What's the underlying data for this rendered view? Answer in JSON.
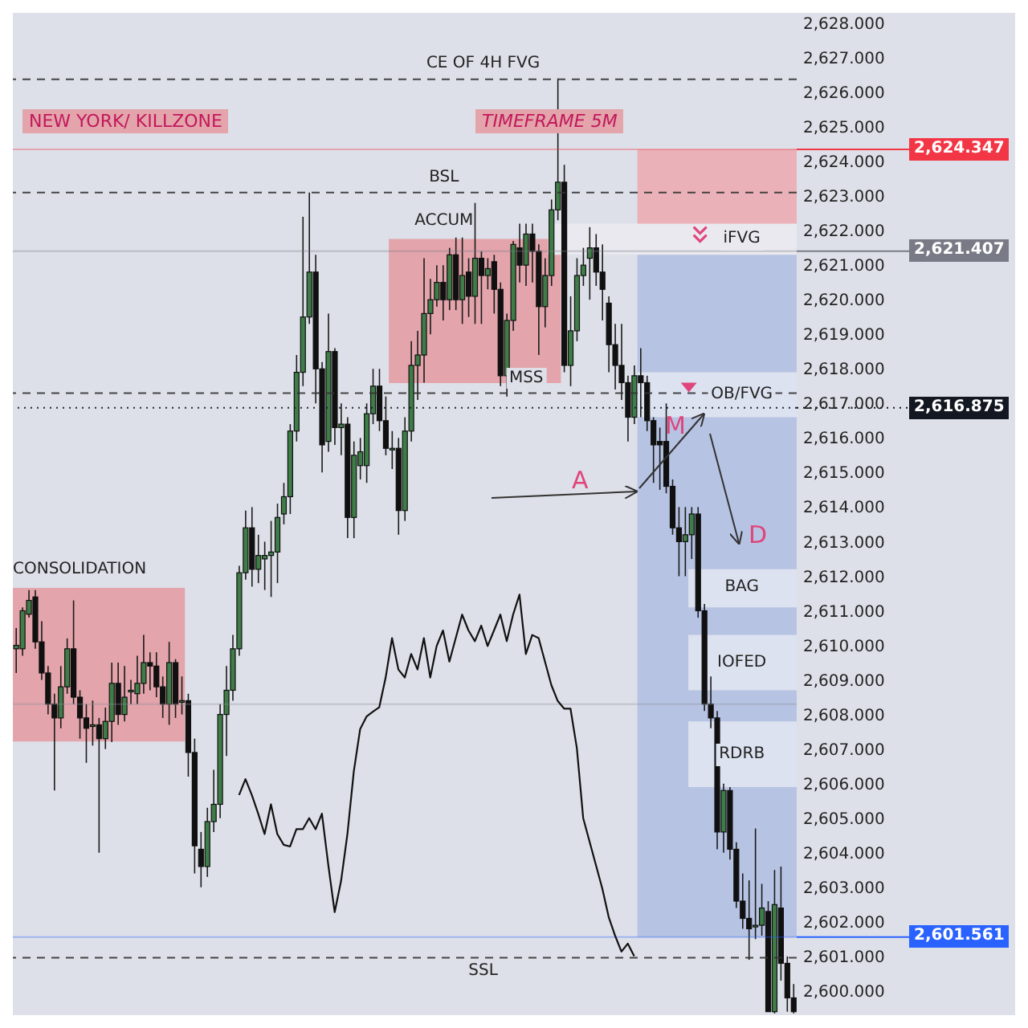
{
  "chart_data": {
    "type": "candlestick",
    "categories": [
      null,
      null,
      null,
      null,
      null,
      null,
      null,
      null,
      null,
      null,
      null,
      null,
      null,
      null,
      null,
      null,
      null,
      null,
      null,
      null,
      null,
      null,
      null,
      null,
      null,
      null,
      null,
      null,
      null,
      null,
      null,
      null,
      null,
      null,
      null,
      null,
      null,
      null,
      null,
      null,
      null,
      null,
      null,
      null,
      null,
      null,
      null,
      null,
      null,
      null,
      null,
      null,
      null,
      null,
      null,
      null,
      null,
      null,
      null,
      null,
      null,
      null,
      null,
      null,
      null,
      null,
      null,
      null,
      null,
      null,
      null,
      null,
      null,
      null,
      null,
      null,
      null,
      null,
      null,
      null,
      null,
      null,
      null,
      null,
      null,
      null,
      null,
      null,
      null,
      null,
      null,
      null,
      null,
      null,
      null,
      null,
      null,
      null,
      null,
      null,
      null,
      null,
      null,
      null,
      null,
      null,
      null,
      null,
      null,
      null,
      null,
      null,
      null,
      null,
      null,
      null,
      null,
      null,
      null,
      null,
      null,
      null,
      null
    ],
    "ohlc": [
      [
        2609.9,
        2610.5,
        2609.2,
        2610.0
      ],
      [
        2609.9,
        2611.1,
        2609.7,
        2611.0
      ],
      [
        2610.9,
        2611.6,
        2610.8,
        2611.3
      ],
      [
        2611.4,
        2611.6,
        2609.9,
        2610.1
      ],
      [
        2610.1,
        2610.7,
        2609.0,
        2609.2
      ],
      [
        2609.2,
        2609.4,
        2608.0,
        2608.3
      ],
      [
        2608.3,
        2608.6,
        2605.8,
        2607.9
      ],
      [
        2607.9,
        2609.4,
        2607.6,
        2608.8
      ],
      [
        2608.8,
        2610.2,
        2608.6,
        2609.9
      ],
      [
        2609.9,
        2611.3,
        2608.3,
        2608.5
      ],
      [
        2608.5,
        2608.7,
        2607.3,
        2607.9
      ],
      [
        2607.9,
        2608.3,
        2606.6,
        2607.6
      ],
      [
        2607.7,
        2608.4,
        2607.1,
        2607.7
      ],
      [
        2607.7,
        2607.9,
        2604.0,
        2607.3
      ],
      [
        2607.3,
        2608.2,
        2607.0,
        2607.8
      ],
      [
        2607.8,
        2609.5,
        2607.2,
        2608.9
      ],
      [
        2608.9,
        2609.5,
        2607.7,
        2608.0
      ],
      [
        2608.0,
        2609.4,
        2607.8,
        2608.5
      ],
      [
        2608.7,
        2609.0,
        2608.3,
        2608.7
      ],
      [
        2608.6,
        2609.7,
        2608.3,
        2608.9
      ],
      [
        2608.9,
        2610.3,
        2608.6,
        2609.5
      ],
      [
        2609.5,
        2609.8,
        2608.7,
        2609.4
      ],
      [
        2609.4,
        2609.8,
        2608.5,
        2608.8
      ],
      [
        2608.8,
        2609.1,
        2607.9,
        2608.3
      ],
      [
        2608.3,
        2610.1,
        2607.7,
        2609.5
      ],
      [
        2609.5,
        2609.6,
        2607.9,
        2608.3
      ],
      [
        2608.4,
        2609.1,
        2608.0,
        2608.4
      ],
      [
        2608.4,
        2608.6,
        2606.2,
        2606.9
      ],
      [
        2606.9,
        2607.3,
        2603.4,
        2604.2
      ],
      [
        2604.1,
        2604.6,
        2603.0,
        2603.6
      ],
      [
        2603.6,
        2605.3,
        2603.3,
        2604.9
      ],
      [
        2604.9,
        2606.4,
        2604.6,
        2605.4
      ],
      [
        2605.4,
        2608.3,
        2605.0,
        2608.0
      ],
      [
        2608.0,
        2609.4,
        2606.8,
        2608.7
      ],
      [
        2608.7,
        2610.3,
        2608.4,
        2609.9
      ],
      [
        2609.9,
        2612.3,
        2609.7,
        2612.1
      ],
      [
        2612.1,
        2613.9,
        2611.9,
        2613.4
      ],
      [
        2613.4,
        2614.0,
        2611.7,
        2612.2
      ],
      [
        2612.2,
        2613.2,
        2611.8,
        2612.6
      ],
      [
        2612.5,
        2613.0,
        2611.6,
        2612.6
      ],
      [
        2612.6,
        2613.6,
        2611.4,
        2612.7
      ],
      [
        2612.7,
        2614.1,
        2611.8,
        2613.7
      ],
      [
        2613.8,
        2614.7,
        2613.5,
        2614.3
      ],
      [
        2614.3,
        2616.4,
        2613.8,
        2616.2
      ],
      [
        2616.2,
        2618.4,
        2615.9,
        2617.9
      ],
      [
        2617.9,
        2622.4,
        2617.5,
        2619.5
      ],
      [
        2619.5,
        2623.1,
        2619.3,
        2620.8
      ],
      [
        2620.8,
        2621.3,
        2617.0,
        2618.0
      ],
      [
        2618.0,
        2618.2,
        2615.0,
        2615.8
      ],
      [
        2615.9,
        2619.6,
        2615.6,
        2618.5
      ],
      [
        2618.5,
        2618.6,
        2615.8,
        2616.3
      ],
      [
        2616.3,
        2617.0,
        2615.5,
        2616.4
      ],
      [
        2616.4,
        2616.6,
        2613.1,
        2613.7
      ],
      [
        2613.7,
        2615.9,
        2613.1,
        2615.5
      ],
      [
        2615.2,
        2616.0,
        2614.8,
        2615.6
      ],
      [
        2615.2,
        2617.0,
        2614.7,
        2616.7
      ],
      [
        2616.7,
        2618.0,
        2616.4,
        2617.5
      ],
      [
        2617.5,
        2618.0,
        2616.2,
        2616.5
      ],
      [
        2616.5,
        2617.2,
        2615.5,
        2615.7
      ],
      [
        2615.7,
        2616.2,
        2615.1,
        2615.7
      ],
      [
        2615.7,
        2616.0,
        2613.2,
        2613.9
      ],
      [
        2613.9,
        2616.6,
        2613.6,
        2616.2
      ],
      [
        2616.2,
        2618.8,
        2615.9,
        2618.1
      ],
      [
        2618.1,
        2619.1,
        2617.1,
        2618.4
      ],
      [
        2618.4,
        2621.2,
        2617.6,
        2619.6
      ],
      [
        2619.6,
        2620.6,
        2619.0,
        2620.0
      ],
      [
        2620.0,
        2621.0,
        2619.8,
        2620.5
      ],
      [
        2620.5,
        2621.0,
        2619.4,
        2620.0
      ],
      [
        2620.0,
        2621.5,
        2619.7,
        2621.3
      ],
      [
        2621.3,
        2621.8,
        2619.7,
        2620.0
      ],
      [
        2620.0,
        2621.8,
        2619.3,
        2620.7
      ],
      [
        2620.8,
        2621.2,
        2619.5,
        2620.1
      ],
      [
        2620.1,
        2622.8,
        2619.3,
        2621.2
      ],
      [
        2621.2,
        2621.4,
        2619.3,
        2620.7
      ],
      [
        2620.7,
        2621.2,
        2620.3,
        2620.9
      ],
      [
        2621.1,
        2621.3,
        2619.6,
        2620.3
      ],
      [
        2620.3,
        2620.5,
        2617.5,
        2617.8
      ],
      [
        2617.8,
        2619.6,
        2617.2,
        2619.4
      ],
      [
        2619.4,
        2621.7,
        2619.1,
        2621.6
      ],
      [
        2621.5,
        2622.2,
        2620.5,
        2621.0
      ],
      [
        2621.0,
        2622.2,
        2620.4,
        2621.9
      ],
      [
        2621.9,
        2622.2,
        2620.5,
        2621.4
      ],
      [
        2621.4,
        2621.6,
        2618.4,
        2619.8
      ],
      [
        2619.8,
        2621.2,
        2619.2,
        2620.7
      ],
      [
        2620.7,
        2622.9,
        2620.4,
        2622.6
      ],
      [
        2622.6,
        2626.4,
        2622.3,
        2623.4
      ],
      [
        2623.4,
        2623.9,
        2617.9,
        2618.1
      ],
      [
        2618.1,
        2620.1,
        2617.5,
        2619.1
      ],
      [
        2619.1,
        2621.2,
        2618.8,
        2620.7
      ],
      [
        2620.7,
        2621.5,
        2620.4,
        2621.0
      ],
      [
        2621.2,
        2622.1,
        2620.0,
        2621.5
      ],
      [
        2621.5,
        2621.9,
        2620.4,
        2620.8
      ],
      [
        2620.8,
        2621.6,
        2619.4,
        2620.3
      ],
      [
        2619.9,
        2620.1,
        2617.9,
        2618.7
      ],
      [
        2618.7,
        2619.3,
        2617.4,
        2618.1
      ],
      [
        2618.1,
        2619.3,
        2617.1,
        2617.6
      ],
      [
        2617.6,
        2617.8,
        2615.9,
        2616.6
      ],
      [
        2616.6,
        2618.1,
        2616.4,
        2617.8
      ],
      [
        2617.8,
        2618.6,
        2616.6,
        2617.6
      ],
      [
        2617.6,
        2617.8,
        2616.2,
        2616.5
      ],
      [
        2616.5,
        2616.6,
        2614.7,
        2615.8
      ],
      [
        2615.9,
        2616.3,
        2614.5,
        2615.8
      ],
      [
        2615.9,
        2617.0,
        2614.4,
        2614.6
      ],
      [
        2614.6,
        2614.8,
        2613.2,
        2613.4
      ],
      [
        2613.4,
        2614.0,
        2612.0,
        2613.0
      ],
      [
        2613.0,
        2614.0,
        2612.0,
        2613.2
      ],
      [
        2613.2,
        2614.0,
        2612.5,
        2613.8
      ],
      [
        2613.8,
        2614.0,
        2610.8,
        2611.0
      ],
      [
        2611.0,
        2611.2,
        2608.1,
        2608.3
      ],
      [
        2608.3,
        2609.1,
        2607.6,
        2607.9
      ],
      [
        2607.9,
        2608.1,
        2604.1,
        2604.6
      ],
      [
        2604.6,
        2606.0,
        2604.0,
        2605.8
      ],
      [
        2605.8,
        2605.9,
        2603.8,
        2604.1
      ],
      [
        2604.1,
        2604.3,
        2602.4,
        2602.6
      ],
      [
        2602.6,
        2603.4,
        2601.8,
        2602.1
      ],
      [
        2602.1,
        2603.2,
        2600.9,
        2601.8
      ],
      [
        2601.9,
        2604.7,
        2601.5,
        2601.9
      ],
      [
        2601.9,
        2603.1,
        2601.6,
        2602.4
      ],
      [
        2602.3,
        2602.6,
        2599.4,
        2599.4
      ],
      [
        2599.4,
        2603.5,
        2599.35,
        2602.5
      ],
      [
        2602.4,
        2603.6,
        2600.3,
        2600.8
      ],
      [
        2600.8,
        2601.0,
        2599.4,
        2599.8
      ],
      [
        2599.8,
        2600.2,
        2599.35,
        2599.4
      ]
    ],
    "series": [
      {
        "type": "line",
        "color": "#111111",
        "values": [
          null,
          null,
          null,
          null,
          null,
          null,
          null,
          null,
          null,
          null,
          null,
          null,
          null,
          null,
          null,
          null,
          null,
          null,
          null,
          null,
          null,
          null,
          null,
          null,
          null,
          null,
          null,
          null,
          null,
          null,
          null,
          null,
          null,
          null,
          null,
          2605.67,
          2606.13,
          2605.67,
          2605.13,
          2604.54,
          2605.4,
          2604.54,
          2604.23,
          2604.18,
          2604.68,
          2604.68,
          2605.0,
          2604.68,
          2605.13,
          2603.64,
          2602.28,
          2603.18,
          2604.54,
          2606.35,
          2607.58,
          2607.94,
          2608.08,
          2608.21,
          2609.07,
          2610.21,
          2609.3,
          2609.07,
          2609.75,
          2609.3,
          2610.21,
          2609.07,
          2609.98,
          2610.43,
          2609.53,
          2610.21,
          2610.89,
          2610.43,
          2610.12,
          2610.57,
          2609.98,
          2610.43,
          2610.89,
          2610.12,
          2610.89,
          2611.47,
          2609.75,
          2610.3,
          2610.21,
          2609.53,
          2608.85,
          2608.39,
          2608.17,
          2608.17,
          2607.03,
          2605.0,
          2604.32,
          2603.64,
          2602.96,
          2602.14,
          2601.6,
          2601.14,
          2601.37,
          2601.01,
          null,
          null,
          null,
          null,
          null,
          null,
          null,
          null,
          null,
          null,
          null,
          null,
          null,
          null,
          null,
          null,
          null,
          null,
          null,
          null,
          null,
          null,
          null,
          null,
          null
        ]
      }
    ],
    "ylim": [
      2599.3,
      2628.3
    ],
    "yticks": [
      {
        "value": 2600,
        "label": "2,600.000"
      },
      {
        "value": 2601,
        "label": "2,601.000"
      },
      {
        "value": 2602,
        "label": "2,602.000"
      },
      {
        "value": 2603,
        "label": "2,603.000"
      },
      {
        "value": 2604,
        "label": "2,604.000"
      },
      {
        "value": 2605,
        "label": "2,605.000"
      },
      {
        "value": 2606,
        "label": "2,606.000"
      },
      {
        "value": 2607,
        "label": "2,607.000"
      },
      {
        "value": 2608,
        "label": "2,608.000"
      },
      {
        "value": 2609,
        "label": "2,609.000"
      },
      {
        "value": 2610,
        "label": "2,610.000"
      },
      {
        "value": 2611,
        "label": "2,611.000"
      },
      {
        "value": 2612,
        "label": "2,612.000"
      },
      {
        "value": 2613,
        "label": "2,613.000"
      },
      {
        "value": 2614,
        "label": "2,614.000"
      },
      {
        "value": 2615,
        "label": "2,615.000"
      },
      {
        "value": 2616,
        "label": "2,616.000"
      },
      {
        "value": 2617,
        "label": "2,617.000"
      },
      {
        "value": 2618,
        "label": "2,618.000"
      },
      {
        "value": 2619,
        "label": "2,619.000"
      },
      {
        "value": 2620,
        "label": "2,620.000"
      },
      {
        "value": 2621,
        "label": "2,621.000"
      },
      {
        "value": 2622,
        "label": "2,622.000"
      },
      {
        "value": 2623,
        "label": "2,623.000"
      },
      {
        "value": 2624,
        "label": "2,624.000"
      },
      {
        "value": 2625,
        "label": "2,625.000"
      },
      {
        "value": 2626,
        "label": "2,626.000"
      },
      {
        "value": 2627,
        "label": "2,627.000"
      },
      {
        "value": 2628,
        "label": "2,628.000"
      }
    ],
    "tick_labels": "y",
    "bands": [
      {
        "axis": "y",
        "from": 2621.407,
        "to": 2624.347,
        "color": "#eab2b8"
      },
      {
        "axis": "y",
        "from": 2601.561,
        "to": 2621.407,
        "color": "#b7c3e3"
      },
      {
        "axis": "y",
        "from": 2607.22,
        "to": 2611.66,
        "label": "CONSOLIDATION",
        "color": "#e3a4ab"
      },
      {
        "axis": "y",
        "from": 2617.59,
        "to": 2621.76,
        "label": "ACCUM",
        "color": "#e3a4ab"
      },
      {
        "axis": "y",
        "from": 2621.3,
        "to": 2622.2,
        "label": "iFVG",
        "color": "#e9e9ef"
      },
      {
        "axis": "y",
        "from": 2616.6,
        "to": 2617.9,
        "label": "OB/FVG",
        "color": "#dde2f0"
      },
      {
        "axis": "y",
        "from": 2611.1,
        "to": 2612.2,
        "label": "BAG",
        "color": "#dde2f0"
      },
      {
        "axis": "y",
        "from": 2608.7,
        "to": 2610.3,
        "label": "IOFED",
        "color": "#dde2f0"
      },
      {
        "axis": "y",
        "from": 2605.9,
        "to": 2607.8,
        "label": "RDRB",
        "color": "#dde2f0"
      }
    ],
    "ref_lines": [
      {
        "axis": "y",
        "value": 2626.38,
        "label": "CE OF 4H FVG",
        "color": "#333333",
        "line_style": "dashed"
      },
      {
        "axis": "y",
        "value": 2623.1,
        "label": "BSL",
        "color": "#333333",
        "line_style": "dashed"
      },
      {
        "axis": "y",
        "value": 2617.3,
        "label": "MSS",
        "color": "#333333",
        "line_style": "dashed"
      },
      {
        "axis": "y",
        "value": 2600.96,
        "label": "SSL",
        "color": "#333333",
        "line_style": "dashed"
      },
      {
        "axis": "y",
        "value": 2608.3,
        "color": "#8d9099",
        "line_style": "solid"
      },
      {
        "axis": "y",
        "value": 2624.347,
        "label": "2,624.347",
        "color": "#f23645",
        "line_style": "solid"
      },
      {
        "axis": "y",
        "value": 2621.407,
        "label": "2,621.407",
        "color": "#787b86",
        "line_style": "solid"
      },
      {
        "axis": "y",
        "value": 2616.875,
        "label": "2,616.875",
        "color": "#131722",
        "line_style": "dotted"
      },
      {
        "axis": "y",
        "value": 2601.561,
        "label": "2,601.561",
        "color": "#2962ff",
        "line_style": "solid"
      }
    ],
    "annotations": [
      "NEW YORK/ KILLZONE",
      "TIMEFRAME 5M",
      "A",
      "M",
      "D"
    ]
  }
}
